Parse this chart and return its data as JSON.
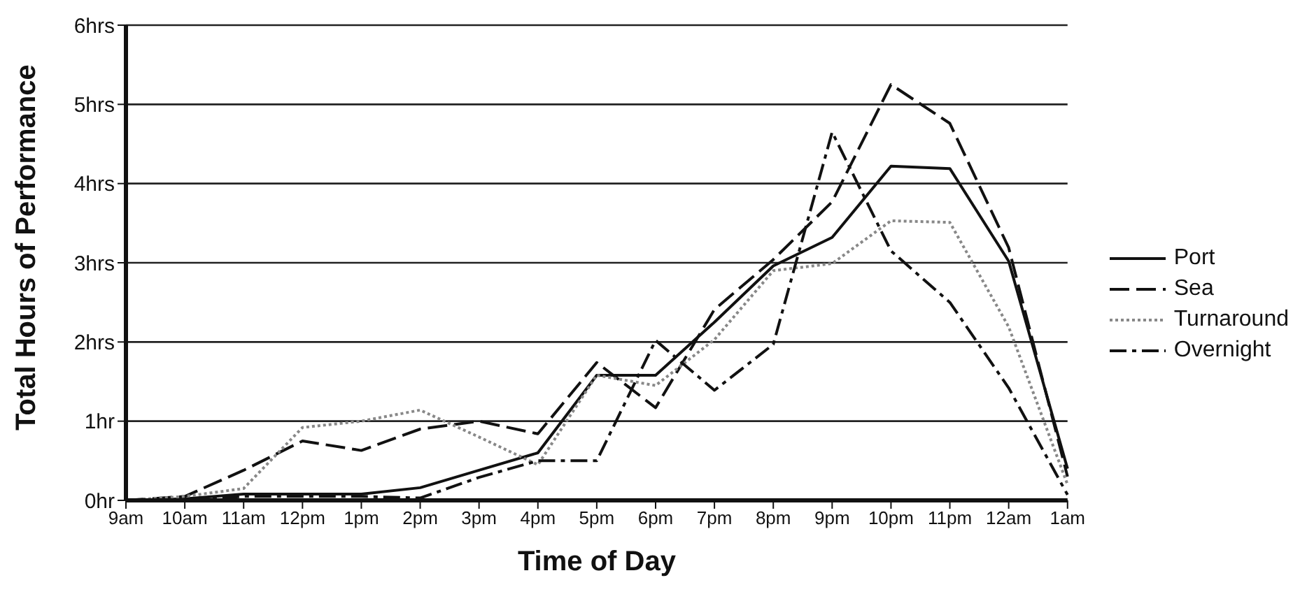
{
  "chart_data": {
    "type": "line",
    "xlabel": "Time of Day",
    "ylabel": "Total Hours of Performance",
    "categories": [
      "9am",
      "10am",
      "11am",
      "12pm",
      "1pm",
      "2pm",
      "3pm",
      "4pm",
      "5pm",
      "6pm",
      "7pm",
      "8pm",
      "9pm",
      "10pm",
      "11pm",
      "12am",
      "1am"
    ],
    "series": [
      {
        "name": "Port",
        "color": "#111111",
        "line_style": "solid",
        "values": [
          0,
          0.02,
          0.08,
          0.08,
          0.08,
          0.16,
          0.38,
          0.6,
          1.58,
          1.58,
          2.25,
          2.96,
          3.32,
          4.22,
          4.19,
          3.02,
          0.4
        ]
      },
      {
        "name": "Sea",
        "color": "#111111",
        "line_style": "dashed",
        "values": [
          0,
          0.05,
          0.38,
          0.75,
          0.63,
          0.9,
          1.0,
          0.84,
          1.74,
          1.17,
          2.41,
          3.04,
          3.77,
          5.25,
          4.76,
          3.19,
          0.3
        ]
      },
      {
        "name": "Turnaround",
        "color": "#888888",
        "line_style": "dotted",
        "values": [
          0,
          0.05,
          0.15,
          0.92,
          1.0,
          1.14,
          0.8,
          0.45,
          1.58,
          1.45,
          2.03,
          2.9,
          2.99,
          3.53,
          3.51,
          2.19,
          0.2
        ]
      },
      {
        "name": "Overnight",
        "color": "#111111",
        "line_style": "dashdot",
        "values": [
          0,
          0,
          0.05,
          0.05,
          0.05,
          0.03,
          0.29,
          0.5,
          0.5,
          2.02,
          1.39,
          1.97,
          4.65,
          3.15,
          2.5,
          1.42,
          0.07
        ]
      }
    ],
    "ylim": [
      0,
      6
    ],
    "yticks": [
      {
        "value": 0,
        "label": "0hr"
      },
      {
        "value": 1,
        "label": "1hr"
      },
      {
        "value": 2,
        "label": "2hrs"
      },
      {
        "value": 3,
        "label": "3hrs"
      },
      {
        "value": 4,
        "label": "4hrs"
      },
      {
        "value": 5,
        "label": "5hrs"
      },
      {
        "value": 6,
        "label": "6hrs"
      }
    ],
    "grid": "y",
    "legend": "right",
    "marker": "none"
  }
}
